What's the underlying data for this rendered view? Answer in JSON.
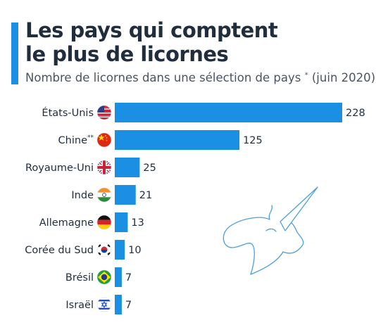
{
  "header": {
    "title_line1": "Les pays qui comptent",
    "title_line2": "le plus de licornes",
    "subtitle_main": "Nombre de licornes dans une sélection de pays",
    "subtitle_mark": "*",
    "subtitle_date": "(juin 2020)"
  },
  "colors": {
    "bar": "#1a8fe3",
    "accent": "#1a8fe3",
    "title": "#1f2d3d",
    "unicorn_outline": "#4a9fe0"
  },
  "chart_data": {
    "type": "bar",
    "orientation": "horizontal",
    "categories": [
      "États-Unis",
      "Chine",
      "Royaume-Uni",
      "Inde",
      "Allemagne",
      "Corée du Sud",
      "Brésil",
      "Israël"
    ],
    "category_marks": [
      "",
      "**",
      "",
      "",
      "",
      "",
      "",
      ""
    ],
    "values": [
      228,
      125,
      25,
      21,
      13,
      10,
      7,
      7
    ],
    "flags": [
      "us-flag-icon",
      "china-flag-icon",
      "uk-flag-icon",
      "india-flag-icon",
      "germany-flag-icon",
      "south-korea-flag-icon",
      "brazil-flag-icon",
      "israel-flag-icon"
    ],
    "title": "Les pays qui comptent le plus de licornes",
    "xlabel": "",
    "ylabel": "",
    "xlim": [
      0,
      228
    ],
    "grid": false,
    "legend": "none"
  }
}
